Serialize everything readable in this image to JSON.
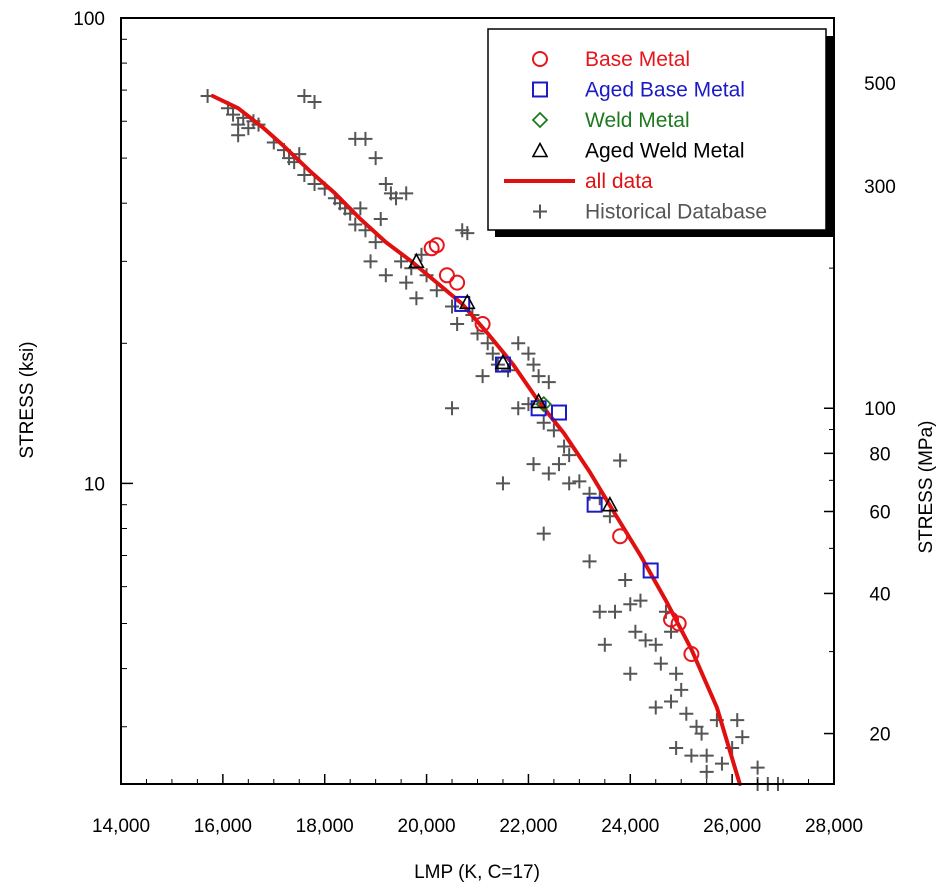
{
  "chart_data": {
    "type": "scatter",
    "xlabel": "LMP (K, C=17)",
    "ylabel": "STRESS (ksi)",
    "ylabel_right": "STRESS (MPa)",
    "xlim": [
      14000,
      28000
    ],
    "ylim": [
      2.26,
      100
    ],
    "y_scale": "log",
    "x_ticks": [
      14000,
      16000,
      18000,
      20000,
      22000,
      24000,
      26000,
      28000
    ],
    "x_tick_labels": [
      "14,000",
      "16,000",
      "18,000",
      "20,000",
      "22,000",
      "24,000",
      "26,000",
      "28,000"
    ],
    "y_tick_labels": [
      "100",
      "10"
    ],
    "y_right_ticks": [
      500,
      300,
      100,
      80,
      60,
      40,
      20
    ],
    "y_right_tick_labels": [
      "500",
      "300",
      "100",
      "80",
      "60",
      "40",
      "20"
    ],
    "grid": false,
    "legend_position": "top-right",
    "colors": {
      "base_metal": "#e8141b",
      "aged_base_metal": "#1a1ac8",
      "weld_metal": "#1f7a1f",
      "aged_weld_metal": "#000000",
      "all_data": "#e01010",
      "historical": "#555555"
    },
    "series": [
      {
        "name": "Base Metal",
        "marker": "circle",
        "points": [
          [
            20100,
            32
          ],
          [
            20200,
            32.5
          ],
          [
            20400,
            28
          ],
          [
            20600,
            27
          ],
          [
            21100,
            22
          ],
          [
            23800,
            7.7
          ],
          [
            24800,
            5.1
          ],
          [
            24950,
            5.0
          ],
          [
            25200,
            4.3
          ]
        ]
      },
      {
        "name": "Aged Base Metal",
        "marker": "square",
        "points": [
          [
            20700,
            24.3
          ],
          [
            21500,
            18
          ],
          [
            22200,
            14.5
          ],
          [
            22600,
            14.2
          ],
          [
            23300,
            9
          ],
          [
            24400,
            6.5
          ]
        ]
      },
      {
        "name": "Weld Metal",
        "marker": "diamond",
        "points": [
          [
            22300,
            14.8
          ]
        ]
      },
      {
        "name": "Aged Weld Metal",
        "marker": "triangle",
        "points": [
          [
            19800,
            30
          ],
          [
            20800,
            24.5
          ],
          [
            21500,
            18.2
          ],
          [
            22200,
            15
          ],
          [
            23600,
            9
          ]
        ]
      },
      {
        "name": "all data",
        "marker": "line",
        "points": [
          [
            15800,
            68
          ],
          [
            16300,
            64
          ],
          [
            16800,
            58
          ],
          [
            17200,
            53
          ],
          [
            17700,
            47
          ],
          [
            18200,
            42
          ],
          [
            18700,
            37
          ],
          [
            19200,
            33
          ],
          [
            19700,
            30
          ],
          [
            20200,
            27
          ],
          [
            20700,
            24.3
          ],
          [
            21200,
            21
          ],
          [
            21700,
            18
          ],
          [
            22200,
            15
          ],
          [
            22700,
            12.8
          ],
          [
            23200,
            10.6
          ],
          [
            23700,
            8.6
          ],
          [
            24200,
            7
          ],
          [
            24700,
            5.6
          ],
          [
            25200,
            4.4
          ],
          [
            25700,
            3.3
          ],
          [
            26150,
            2.26
          ]
        ]
      },
      {
        "name": "Historical Database",
        "marker": "plus",
        "points": [
          [
            15700,
            68
          ],
          [
            16100,
            64
          ],
          [
            16200,
            62
          ],
          [
            16300,
            59
          ],
          [
            16400,
            61
          ],
          [
            16500,
            58
          ],
          [
            16600,
            60
          ],
          [
            16700,
            59
          ],
          [
            16300,
            56
          ],
          [
            17000,
            54
          ],
          [
            17200,
            52
          ],
          [
            17300,
            50
          ],
          [
            17400,
            49
          ],
          [
            17500,
            51
          ],
          [
            17600,
            46
          ],
          [
            17800,
            44
          ],
          [
            17600,
            68
          ],
          [
            17800,
            66
          ],
          [
            18000,
            43
          ],
          [
            18200,
            41
          ],
          [
            18300,
            40
          ],
          [
            18400,
            39
          ],
          [
            18500,
            38
          ],
          [
            18600,
            36
          ],
          [
            18700,
            39
          ],
          [
            18600,
            55
          ],
          [
            18800,
            55
          ],
          [
            19000,
            50
          ],
          [
            19200,
            44
          ],
          [
            19300,
            42
          ],
          [
            19400,
            41
          ],
          [
            19600,
            42
          ],
          [
            19100,
            37
          ],
          [
            18800,
            35
          ],
          [
            19000,
            33
          ],
          [
            18900,
            30
          ],
          [
            19200,
            28
          ],
          [
            19500,
            30
          ],
          [
            19700,
            29
          ],
          [
            19900,
            31
          ],
          [
            19600,
            27
          ],
          [
            20000,
            28
          ],
          [
            19800,
            25
          ],
          [
            20200,
            26
          ],
          [
            20500,
            24
          ],
          [
            20700,
            35
          ],
          [
            20800,
            34.5
          ],
          [
            20600,
            22
          ],
          [
            20900,
            23
          ],
          [
            21000,
            21
          ],
          [
            21200,
            20
          ],
          [
            21300,
            19
          ],
          [
            21100,
            17
          ],
          [
            21400,
            18
          ],
          [
            21600,
            17.5
          ],
          [
            21800,
            20
          ],
          [
            22000,
            19
          ],
          [
            22100,
            18
          ],
          [
            22200,
            17
          ],
          [
            22400,
            16.5
          ],
          [
            22000,
            14.8
          ],
          [
            22300,
            13.5
          ],
          [
            20500,
            14.5
          ],
          [
            21800,
            14.5
          ],
          [
            22500,
            13
          ],
          [
            22700,
            12
          ],
          [
            22800,
            11.5
          ],
          [
            22600,
            11
          ],
          [
            22400,
            10.5
          ],
          [
            22100,
            11
          ],
          [
            21500,
            10
          ],
          [
            22300,
            7.8
          ],
          [
            22800,
            10
          ],
          [
            23000,
            10.1
          ],
          [
            23200,
            9.5
          ],
          [
            23400,
            9.3
          ],
          [
            23600,
            8.5
          ],
          [
            23800,
            11.2
          ],
          [
            23200,
            6.8
          ],
          [
            23400,
            5.3
          ],
          [
            23500,
            4.5
          ],
          [
            23700,
            5.3
          ],
          [
            23900,
            6.2
          ],
          [
            24000,
            5.5
          ],
          [
            24100,
            4.8
          ],
          [
            24200,
            5.6
          ],
          [
            24000,
            3.9
          ],
          [
            24300,
            4.6
          ],
          [
            24500,
            4.5
          ],
          [
            24600,
            4.1
          ],
          [
            24700,
            5.3
          ],
          [
            24800,
            4.8
          ],
          [
            24900,
            3.9
          ],
          [
            25000,
            3.6
          ],
          [
            24500,
            3.3
          ],
          [
            24800,
            3.4
          ],
          [
            25100,
            3.2
          ],
          [
            25300,
            3.0
          ],
          [
            25400,
            2.9
          ],
          [
            25700,
            3.1
          ],
          [
            26100,
            3.1
          ],
          [
            26200,
            2.85
          ],
          [
            26000,
            2.7
          ],
          [
            25500,
            2.6
          ],
          [
            25200,
            2.6
          ],
          [
            24900,
            2.7
          ],
          [
            25800,
            2.5
          ],
          [
            26500,
            2.45
          ],
          [
            25500,
            2.4
          ],
          [
            26500,
            2.26
          ],
          [
            26700,
            2.26
          ],
          [
            26900,
            2.26
          ]
        ]
      }
    ]
  }
}
